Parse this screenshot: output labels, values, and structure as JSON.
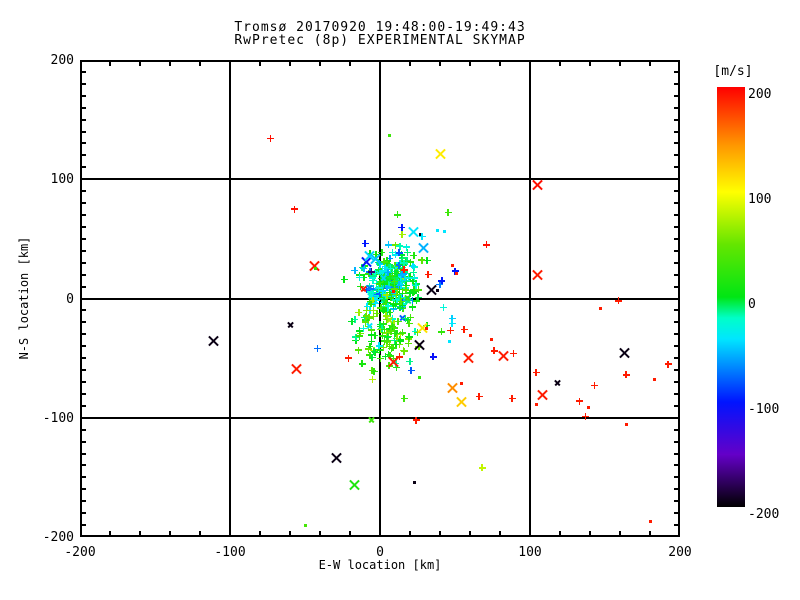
{
  "title": {
    "line1": "Tromsø 20170920 19:48:00-19:49:43",
    "line2": "RwPretec (8p) EXPERIMENTAL SKYMAP"
  },
  "axes": {
    "x_label": "E-W location [km]",
    "y_label": "N-S location [km]",
    "x_range": [
      -200,
      200
    ],
    "y_range": [
      -200,
      200
    ],
    "x_major_ticks": [
      -200,
      -100,
      0,
      100,
      200
    ],
    "y_major_ticks": [
      -200,
      -100,
      0,
      100,
      200
    ],
    "x_minor_step": 20,
    "y_minor_step": 10,
    "gridlines_at": [
      -100,
      0,
      100
    ]
  },
  "colorbar": {
    "label": "[m/s]",
    "ticks": [
      200,
      100,
      0,
      -100,
      -200
    ],
    "range": [
      -200,
      200
    ],
    "stops": [
      [
        -200,
        "#000000"
      ],
      [
        -150,
        "#6400C8"
      ],
      [
        -100,
        "#0014FF"
      ],
      [
        -60,
        "#00A0FF"
      ],
      [
        -40,
        "#00E6FF"
      ],
      [
        -20,
        "#00FFC8"
      ],
      [
        0,
        "#00E614"
      ],
      [
        50,
        "#64E600"
      ],
      [
        100,
        "#FFFF00"
      ],
      [
        145,
        "#FF9600"
      ],
      [
        200,
        "#FF0000"
      ]
    ]
  },
  "chart_data": {
    "type": "scatter",
    "title": "Tromsø 20170920 19:48:00-19:49:43 / RwPretec (8p) EXPERIMENTAL SKYMAP",
    "xlabel": "E-W location [km]",
    "ylabel": "N-S location [km]",
    "xlim": [
      -200,
      200
    ],
    "ylim": [
      -200,
      200
    ],
    "value_unit": "m/s",
    "value_lim": [
      -200,
      200
    ],
    "grid": true,
    "point_format": "[x_km, y_km, velocity_ms, marker] markers: p=small plus, X=large cross, x=small cross, d=dot",
    "points": [
      [
        -73,
        134,
        195,
        "p"
      ],
      [
        6,
        137,
        30,
        "d"
      ],
      [
        40,
        121,
        108,
        "X"
      ],
      [
        105,
        95,
        195,
        "X"
      ],
      [
        -57,
        75,
        195,
        "p"
      ],
      [
        14.5,
        59.5,
        -100,
        "p"
      ],
      [
        22,
        56,
        -40,
        "X"
      ],
      [
        27,
        54,
        -195,
        "d"
      ],
      [
        38,
        57,
        -40,
        "d"
      ],
      [
        14.7,
        53.5,
        70,
        "p"
      ],
      [
        28,
        52,
        -40,
        "p"
      ],
      [
        29,
        42,
        -55,
        "X"
      ],
      [
        43,
        56,
        -40,
        "d"
      ],
      [
        71,
        45,
        195,
        "p"
      ],
      [
        -44,
        27,
        190,
        "X"
      ],
      [
        -43,
        25,
        25,
        "d"
      ],
      [
        -9,
        31,
        -105,
        "X"
      ],
      [
        -7,
        36,
        -45,
        "X"
      ],
      [
        -3,
        33,
        -50,
        "X"
      ],
      [
        -10,
        46,
        -100,
        "p"
      ],
      [
        -11,
        8,
        190,
        "x"
      ],
      [
        105,
        20,
        190,
        "X"
      ],
      [
        32,
        20,
        190,
        "p"
      ],
      [
        48,
        28,
        190,
        "d"
      ],
      [
        50,
        23,
        -100,
        "p"
      ],
      [
        51,
        21,
        190,
        "d"
      ],
      [
        34,
        7,
        -195,
        "X"
      ],
      [
        38,
        7,
        -195,
        "d"
      ],
      [
        16,
        24,
        190,
        "p"
      ],
      [
        9,
        6,
        190,
        "d"
      ],
      [
        -60,
        -22,
        -195,
        "x"
      ],
      [
        -111,
        -36,
        -195,
        "X"
      ],
      [
        -56,
        -59,
        190,
        "X"
      ],
      [
        -21,
        -50,
        190,
        "p"
      ],
      [
        -5,
        -68,
        75,
        "p"
      ],
      [
        9,
        -53,
        190,
        "X"
      ],
      [
        13,
        -49,
        190,
        "p"
      ],
      [
        26,
        -39,
        -195,
        "X"
      ],
      [
        28,
        -25,
        112,
        "X"
      ],
      [
        31,
        -25,
        190,
        "d"
      ],
      [
        48,
        -21,
        -40,
        "p"
      ],
      [
        41,
        -28,
        25,
        "p"
      ],
      [
        47,
        -27,
        190,
        "p"
      ],
      [
        56,
        -26,
        190,
        "p"
      ],
      [
        60,
        -31,
        190,
        "d"
      ],
      [
        46,
        -36,
        -40,
        "d"
      ],
      [
        26,
        -66,
        25,
        "d"
      ],
      [
        74,
        -34,
        190,
        "d"
      ],
      [
        76,
        -44,
        190,
        "p"
      ],
      [
        82,
        -48,
        190,
        "X"
      ],
      [
        89,
        -46,
        190,
        "p"
      ],
      [
        59,
        -50,
        190,
        "X"
      ],
      [
        104,
        -62,
        190,
        "p"
      ],
      [
        118,
        -71,
        -195,
        "x"
      ],
      [
        108,
        -81,
        190,
        "X"
      ],
      [
        104,
        -89,
        190,
        "d"
      ],
      [
        133,
        -86,
        190,
        "p"
      ],
      [
        139,
        -91,
        190,
        "d"
      ],
      [
        137,
        -99,
        190,
        "p"
      ],
      [
        143,
        -73,
        190,
        "p"
      ],
      [
        164,
        -106,
        190,
        "d"
      ],
      [
        147,
        -8,
        190,
        "d"
      ],
      [
        159,
        -2,
        190,
        "p"
      ],
      [
        163,
        -46,
        -195,
        "X"
      ],
      [
        192,
        -55,
        190,
        "p"
      ],
      [
        164,
        -64,
        190,
        "p"
      ],
      [
        183,
        -68,
        190,
        "d"
      ],
      [
        48,
        -75,
        148,
        "X"
      ],
      [
        54,
        -71,
        190,
        "d"
      ],
      [
        54,
        -87,
        122,
        "X"
      ],
      [
        16,
        -84,
        30,
        "p"
      ],
      [
        66,
        -82,
        190,
        "p"
      ],
      [
        88,
        -84,
        190,
        "p"
      ],
      [
        -6,
        -102,
        30,
        "x"
      ],
      [
        24,
        -102,
        190,
        "p"
      ],
      [
        -29,
        -134,
        -195,
        "X"
      ],
      [
        -17,
        -156,
        15,
        "X"
      ],
      [
        23,
        -154,
        -195,
        "d"
      ],
      [
        68,
        -142,
        80,
        "p"
      ],
      [
        -50,
        -190,
        35,
        "d"
      ],
      [
        180,
        -187,
        190,
        "d"
      ]
    ],
    "dense_clusters": [
      {
        "n": 250,
        "cx": 7,
        "cy": 13,
        "sx": 8,
        "sy": 14,
        "v_mean": -15,
        "v_sd": 30,
        "marker": "p"
      },
      {
        "n": 110,
        "cx": 3,
        "cy": -27,
        "sx": 10,
        "sy": 15,
        "v_mean": 22,
        "v_sd": 25,
        "marker": "p"
      },
      {
        "n": 45,
        "cx": 10,
        "cy": 8,
        "sx": 20,
        "sy": 30,
        "v_mean": -20,
        "v_sd": 55,
        "marker": "p",
        "x_every": 6
      }
    ]
  }
}
